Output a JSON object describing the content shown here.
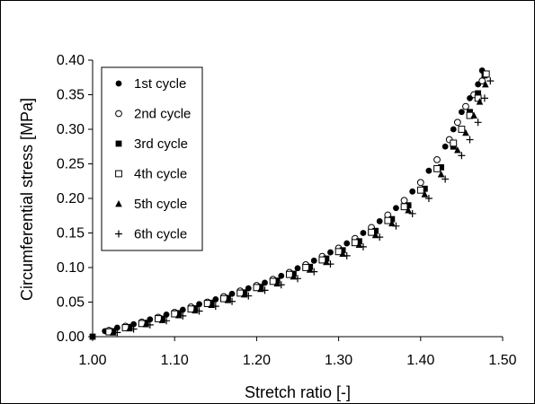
{
  "chart_data": {
    "type": "scatter",
    "xlabel": "Stretch ratio [-]",
    "ylabel": "Circumferential stress [MPa]",
    "xlim": [
      1.0,
      1.5
    ],
    "ylim": [
      0.0,
      0.4
    ],
    "x_ticks": [
      "1.00",
      "1.10",
      "1.20",
      "1.30",
      "1.40",
      "1.50"
    ],
    "y_ticks": [
      "0.00",
      "0.05",
      "0.10",
      "0.15",
      "0.20",
      "0.25",
      "0.30",
      "0.35",
      "0.40"
    ],
    "grid": false,
    "legend_position": "top-left",
    "series": [
      {
        "name": "1st cycle",
        "marker": "filled-circle",
        "x": [
          1.015,
          1.03,
          1.05,
          1.07,
          1.09,
          1.11,
          1.13,
          1.15,
          1.17,
          1.19,
          1.21,
          1.23,
          1.25,
          1.27,
          1.29,
          1.31,
          1.33,
          1.35,
          1.37,
          1.39,
          1.41,
          1.43,
          1.44,
          1.45,
          1.46,
          1.47,
          1.475
        ],
        "y": [
          0.008,
          0.013,
          0.018,
          0.025,
          0.032,
          0.039,
          0.047,
          0.054,
          0.062,
          0.07,
          0.078,
          0.088,
          0.099,
          0.11,
          0.122,
          0.135,
          0.15,
          0.167,
          0.186,
          0.21,
          0.24,
          0.275,
          0.3,
          0.325,
          0.345,
          0.365,
          0.385
        ]
      },
      {
        "name": "2nd cycle",
        "marker": "open-circle",
        "x": [
          1.02,
          1.04,
          1.06,
          1.08,
          1.1,
          1.12,
          1.14,
          1.16,
          1.18,
          1.2,
          1.22,
          1.24,
          1.26,
          1.28,
          1.3,
          1.32,
          1.34,
          1.36,
          1.38,
          1.4,
          1.42,
          1.435,
          1.445,
          1.455,
          1.465,
          1.475
        ],
        "y": [
          0.009,
          0.015,
          0.021,
          0.028,
          0.035,
          0.043,
          0.05,
          0.058,
          0.066,
          0.074,
          0.083,
          0.093,
          0.104,
          0.116,
          0.128,
          0.142,
          0.158,
          0.176,
          0.197,
          0.223,
          0.256,
          0.285,
          0.31,
          0.333,
          0.35,
          0.37
        ]
      },
      {
        "name": "3rd cycle",
        "marker": "filled-square",
        "x": [
          1.025,
          1.045,
          1.065,
          1.085,
          1.105,
          1.125,
          1.145,
          1.165,
          1.185,
          1.205,
          1.225,
          1.245,
          1.265,
          1.285,
          1.305,
          1.325,
          1.345,
          1.365,
          1.385,
          1.405,
          1.425,
          1.44,
          1.45,
          1.46,
          1.47,
          1.478
        ],
        "y": [
          0.008,
          0.014,
          0.02,
          0.026,
          0.034,
          0.041,
          0.049,
          0.056,
          0.064,
          0.072,
          0.081,
          0.091,
          0.101,
          0.113,
          0.125,
          0.138,
          0.153,
          0.17,
          0.19,
          0.214,
          0.245,
          0.275,
          0.3,
          0.325,
          0.352,
          0.378
        ]
      },
      {
        "name": "4th cycle",
        "marker": "open-square",
        "x": [
          1.02,
          1.04,
          1.06,
          1.08,
          1.1,
          1.12,
          1.14,
          1.16,
          1.18,
          1.2,
          1.22,
          1.24,
          1.26,
          1.28,
          1.3,
          1.32,
          1.34,
          1.36,
          1.38,
          1.4,
          1.42,
          1.44,
          1.45,
          1.46,
          1.47,
          1.48
        ],
        "y": [
          0.007,
          0.013,
          0.019,
          0.026,
          0.033,
          0.04,
          0.048,
          0.055,
          0.063,
          0.071,
          0.08,
          0.09,
          0.1,
          0.111,
          0.123,
          0.136,
          0.151,
          0.168,
          0.188,
          0.212,
          0.243,
          0.28,
          0.3,
          0.32,
          0.345,
          0.38
        ]
      },
      {
        "name": "5th cycle",
        "marker": "filled-triangle",
        "x": [
          1.025,
          1.045,
          1.065,
          1.085,
          1.105,
          1.125,
          1.145,
          1.165,
          1.185,
          1.205,
          1.225,
          1.245,
          1.265,
          1.285,
          1.305,
          1.325,
          1.345,
          1.365,
          1.385,
          1.405,
          1.425,
          1.445,
          1.455,
          1.465,
          1.472,
          1.479
        ],
        "y": [
          0.006,
          0.012,
          0.018,
          0.024,
          0.031,
          0.038,
          0.046,
          0.053,
          0.061,
          0.069,
          0.077,
          0.087,
          0.097,
          0.108,
          0.12,
          0.133,
          0.147,
          0.164,
          0.183,
          0.206,
          0.235,
          0.27,
          0.295,
          0.32,
          0.34,
          0.365
        ]
      },
      {
        "name": "6th cycle",
        "marker": "plus",
        "x": [
          1.03,
          1.05,
          1.07,
          1.09,
          1.11,
          1.13,
          1.15,
          1.17,
          1.19,
          1.21,
          1.23,
          1.25,
          1.27,
          1.29,
          1.31,
          1.33,
          1.35,
          1.37,
          1.39,
          1.41,
          1.43,
          1.45,
          1.46,
          1.47,
          1.478,
          1.485
        ],
        "y": [
          0.006,
          0.011,
          0.017,
          0.023,
          0.03,
          0.037,
          0.044,
          0.051,
          0.059,
          0.067,
          0.075,
          0.084,
          0.094,
          0.105,
          0.117,
          0.13,
          0.144,
          0.16,
          0.178,
          0.2,
          0.228,
          0.262,
          0.285,
          0.31,
          0.345,
          0.37
        ]
      }
    ],
    "origin_point": {
      "x": 1.0,
      "y": 0.0
    }
  }
}
